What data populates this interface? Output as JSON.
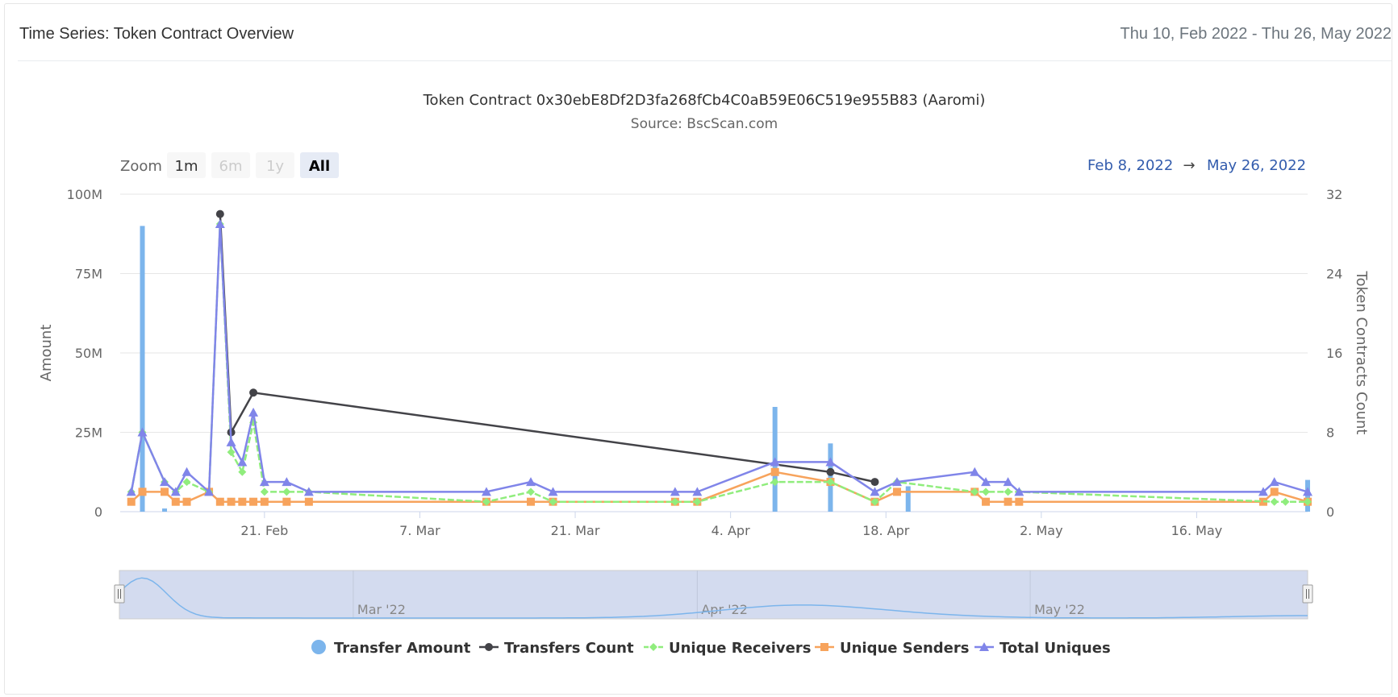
{
  "header": {
    "title": "Time Series: Token Contract Overview",
    "date_range": "Thu 10, Feb 2022 - Thu 26, May 2022"
  },
  "zoom": {
    "label": "Zoom",
    "buttons": [
      {
        "label": "1m",
        "state": "enabled"
      },
      {
        "label": "6m",
        "state": "disabled"
      },
      {
        "label": "1y",
        "state": "disabled"
      },
      {
        "label": "All",
        "state": "selected"
      }
    ]
  },
  "range_selector": {
    "from": "Feb 8, 2022",
    "arrow": "→",
    "to": "May 26, 2022"
  },
  "colors": {
    "transfer_amount": "#7cb5ec",
    "transfers_count": "#434348",
    "unique_receivers": "#90ed7d",
    "unique_senders": "#f7a35c",
    "total_uniques": "#8085e9",
    "navigator_fill": "#d3dbef",
    "navigator_line": "#7cb5ec"
  },
  "chart_data": {
    "type": "line",
    "title": "Token Contract 0x30ebE8Df2D3fa268fCb4C0aB59E06C519e955B83 (Aaromi)",
    "subtitle": "Source: BscScan.com",
    "x_range": [
      "2022-02-08",
      "2022-05-26"
    ],
    "x_ticks": [
      {
        "date": "2022-02-21",
        "label": "21. Feb"
      },
      {
        "date": "2022-03-07",
        "label": "7. Mar"
      },
      {
        "date": "2022-03-21",
        "label": "21. Mar"
      },
      {
        "date": "2022-04-04",
        "label": "4. Apr"
      },
      {
        "date": "2022-04-18",
        "label": "18. Apr"
      },
      {
        "date": "2022-05-02",
        "label": "2. May"
      },
      {
        "date": "2022-05-16",
        "label": "16. May"
      }
    ],
    "y_left": {
      "label": "Amount",
      "ylim": [
        0,
        100000000
      ],
      "ticks": [
        {
          "value": 0,
          "label": "0"
        },
        {
          "value": 25000000,
          "label": "25M"
        },
        {
          "value": 50000000,
          "label": "50M"
        },
        {
          "value": 75000000,
          "label": "75M"
        },
        {
          "value": 100000000,
          "label": "100M"
        }
      ]
    },
    "y_right": {
      "label": "Token Contracts Count",
      "ylim": [
        0,
        32
      ],
      "ticks": [
        {
          "value": 0,
          "label": "0"
        },
        {
          "value": 8,
          "label": "8"
        },
        {
          "value": 16,
          "label": "16"
        },
        {
          "value": 24,
          "label": "24"
        },
        {
          "value": 32,
          "label": "32"
        }
      ]
    },
    "legend": {
      "position": "bottom",
      "items": [
        "Transfer Amount",
        "Transfers Count",
        "Unique Receivers",
        "Unique Senders",
        "Total Uniques"
      ]
    },
    "navigator": {
      "labels": [
        {
          "date": "2022-03-01",
          "label": "Mar '22"
        },
        {
          "date": "2022-04-01",
          "label": "Apr '22"
        },
        {
          "date": "2022-05-01",
          "label": "May '22"
        }
      ]
    },
    "series": [
      {
        "name": "Transfer Amount",
        "type": "column",
        "axis": "left",
        "x": [
          "2022-02-10",
          "2022-02-12",
          "2022-04-08",
          "2022-04-13",
          "2022-04-20",
          "2022-05-26"
        ],
        "values": [
          90000000,
          1000000,
          33000000,
          21500000,
          8000000,
          10000000
        ]
      },
      {
        "name": "Transfers Count",
        "type": "line",
        "axis": "right",
        "marker": "circle",
        "x": [
          "2022-02-17",
          "2022-02-18",
          "2022-02-20",
          "2022-04-13",
          "2022-04-17"
        ],
        "values": [
          30,
          8,
          12,
          4,
          3
        ]
      },
      {
        "name": "Unique Receivers",
        "type": "line",
        "axis": "right",
        "marker": "diamond",
        "x": [
          "2022-02-09",
          "2022-02-10",
          "2022-02-12",
          "2022-02-13",
          "2022-02-14",
          "2022-02-16",
          "2022-02-17",
          "2022-02-18",
          "2022-02-19",
          "2022-02-20",
          "2022-02-21",
          "2022-02-23",
          "2022-02-25",
          "2022-03-13",
          "2022-03-17",
          "2022-03-19",
          "2022-03-30",
          "2022-04-01",
          "2022-04-08",
          "2022-04-13",
          "2022-04-17",
          "2022-04-19",
          "2022-04-26",
          "2022-04-27",
          "2022-04-29",
          "2022-04-30",
          "2022-05-23",
          "2022-05-24",
          "2022-05-26"
        ],
        "values": [
          2,
          8,
          3,
          2,
          3,
          2,
          29,
          6,
          4,
          9,
          2,
          2,
          2,
          1,
          2,
          1,
          1,
          1,
          3,
          3,
          1,
          3,
          2,
          2,
          2,
          2,
          1,
          1,
          1
        ]
      },
      {
        "name": "Unique Senders",
        "type": "line",
        "axis": "right",
        "marker": "square",
        "x": [
          "2022-02-09",
          "2022-02-10",
          "2022-02-12",
          "2022-02-13",
          "2022-02-14",
          "2022-02-16",
          "2022-02-17",
          "2022-02-18",
          "2022-02-19",
          "2022-02-20",
          "2022-02-21",
          "2022-02-23",
          "2022-02-25",
          "2022-03-13",
          "2022-03-17",
          "2022-03-19",
          "2022-03-30",
          "2022-04-01",
          "2022-04-08",
          "2022-04-13",
          "2022-04-17",
          "2022-04-19",
          "2022-04-26",
          "2022-04-27",
          "2022-04-29",
          "2022-04-30",
          "2022-05-22",
          "2022-05-23",
          "2022-05-26"
        ],
        "values": [
          1,
          2,
          2,
          1,
          1,
          2,
          1,
          1,
          1,
          1,
          1,
          1,
          1,
          1,
          1,
          1,
          1,
          1,
          4,
          3,
          1,
          2,
          2,
          1,
          1,
          1,
          1,
          2,
          1
        ]
      },
      {
        "name": "Total Uniques",
        "type": "line",
        "axis": "right",
        "marker": "triangle",
        "x": [
          "2022-02-09",
          "2022-02-10",
          "2022-02-12",
          "2022-02-13",
          "2022-02-14",
          "2022-02-16",
          "2022-02-17",
          "2022-02-18",
          "2022-02-19",
          "2022-02-20",
          "2022-02-21",
          "2022-02-23",
          "2022-02-25",
          "2022-03-13",
          "2022-03-17",
          "2022-03-19",
          "2022-03-30",
          "2022-04-01",
          "2022-04-08",
          "2022-04-13",
          "2022-04-17",
          "2022-04-19",
          "2022-04-26",
          "2022-04-27",
          "2022-04-29",
          "2022-04-30",
          "2022-05-22",
          "2022-05-23",
          "2022-05-26"
        ],
        "values": [
          2,
          8,
          3,
          2,
          4,
          2,
          29,
          7,
          5,
          10,
          3,
          3,
          2,
          2,
          3,
          2,
          2,
          2,
          5,
          5,
          2,
          3,
          4,
          3,
          3,
          2,
          2,
          3,
          2
        ]
      }
    ]
  }
}
